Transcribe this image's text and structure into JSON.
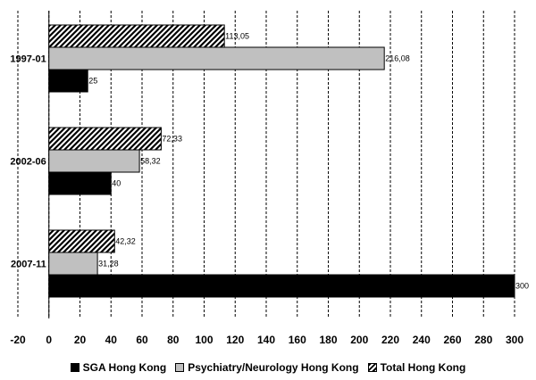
{
  "chart_data": {
    "type": "bar",
    "orientation": "horizontal",
    "categories": [
      "1997-01",
      "2002-06",
      "2007-11"
    ],
    "series": [
      {
        "name": "SGA Hong Kong",
        "values": [
          25,
          40,
          300
        ],
        "labels": [
          "25",
          "40",
          "300"
        ],
        "pattern": "solid",
        "color": "#000000"
      },
      {
        "name": "Psychiatry/Neurology Hong Kong",
        "values": [
          216.08,
          58.32,
          31.28
        ],
        "labels": [
          "216,08",
          "58,32",
          "31,28"
        ],
        "pattern": "solid",
        "color": "#c0c0c0"
      },
      {
        "name": "Total Hong Kong",
        "values": [
          113.05,
          72.33,
          42.32
        ],
        "labels": [
          "113,05",
          "72,33",
          "42,32"
        ],
        "pattern": "hatched",
        "color": "#000000"
      }
    ],
    "xlim": [
      -20,
      300
    ],
    "xticks": [
      -20,
      0,
      20,
      40,
      60,
      80,
      100,
      120,
      140,
      160,
      180,
      200,
      220,
      240,
      260,
      280,
      300
    ],
    "grid": "vertical-dashed",
    "legend": "bottom",
    "title": "",
    "xlabel": "",
    "ylabel": ""
  }
}
